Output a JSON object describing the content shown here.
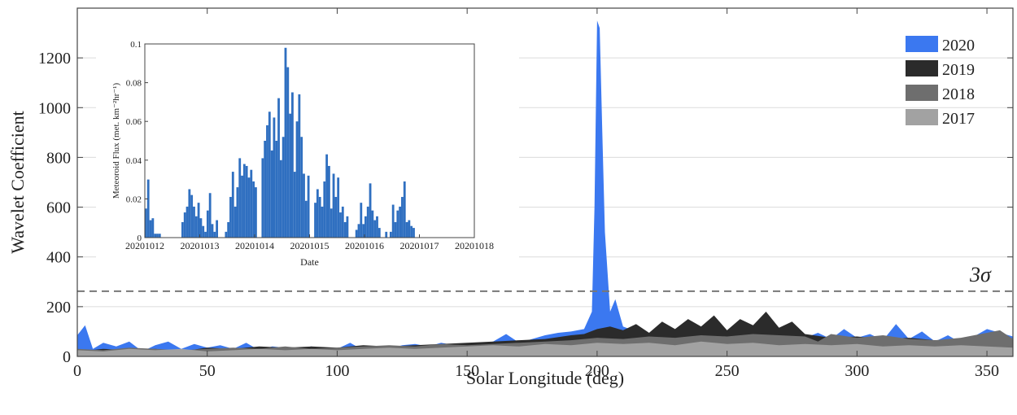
{
  "chart_data": [
    {
      "type": "area",
      "xlabel": "Solar Longitude (deg)",
      "ylabel": "Wavelet Coefficient",
      "xlim": [
        0,
        360
      ],
      "ylim": [
        0,
        1400
      ],
      "xticks": [
        0,
        50,
        100,
        150,
        200,
        250,
        300,
        350
      ],
      "yticks": [
        0,
        200,
        400,
        600,
        800,
        1000,
        1200
      ],
      "grid": "horizontal",
      "legend": "top-right",
      "threshold": {
        "label": "3σ",
        "value": 262
      },
      "series": [
        {
          "name": "2020",
          "color": "#3b78f0",
          "x": [
            0,
            3,
            6,
            10,
            15,
            20,
            25,
            30,
            35,
            40,
            45,
            50,
            55,
            60,
            65,
            70,
            75,
            80,
            85,
            90,
            95,
            100,
            105,
            110,
            115,
            120,
            125,
            130,
            135,
            140,
            145,
            150,
            155,
            160,
            165,
            170,
            175,
            180,
            185,
            190,
            195,
            198,
            199,
            200,
            201,
            202,
            203,
            205,
            207,
            210,
            215,
            220,
            230,
            240,
            250,
            260,
            270,
            280,
            285,
            290,
            295,
            300,
            305,
            310,
            315,
            320,
            325,
            330,
            335,
            340,
            345,
            350,
            355,
            360
          ],
          "values": [
            85,
            125,
            30,
            55,
            40,
            60,
            20,
            45,
            60,
            30,
            50,
            35,
            45,
            30,
            55,
            25,
            40,
            35,
            30,
            40,
            25,
            30,
            55,
            25,
            40,
            30,
            45,
            50,
            40,
            55,
            45,
            40,
            50,
            60,
            90,
            55,
            70,
            85,
            95,
            100,
            110,
            180,
            600,
            1350,
            1320,
            900,
            500,
            180,
            230,
            120,
            100,
            90,
            80,
            85,
            90,
            85,
            80,
            75,
            95,
            70,
            110,
            75,
            90,
            65,
            130,
            70,
            100,
            60,
            85,
            55,
            80,
            110,
            95,
            80
          ]
        },
        {
          "name": "2019",
          "color": "#2b2b2b",
          "x": [
            0,
            10,
            20,
            30,
            40,
            50,
            60,
            70,
            80,
            90,
            100,
            110,
            120,
            130,
            140,
            150,
            160,
            170,
            180,
            190,
            195,
            200,
            205,
            210,
            215,
            220,
            225,
            230,
            235,
            240,
            245,
            250,
            255,
            260,
            265,
            270,
            275,
            280,
            290,
            300,
            310,
            320,
            330,
            340,
            350,
            360
          ],
          "values": [
            20,
            30,
            25,
            30,
            20,
            35,
            30,
            40,
            35,
            40,
            35,
            45,
            40,
            45,
            50,
            55,
            60,
            65,
            70,
            85,
            90,
            110,
            120,
            105,
            130,
            95,
            140,
            110,
            150,
            120,
            165,
            105,
            150,
            125,
            180,
            115,
            140,
            90,
            75,
            80,
            70,
            75,
            65,
            70,
            60,
            55
          ]
        },
        {
          "name": "2018",
          "color": "#6e6e6e",
          "x": [
            0,
            10,
            20,
            30,
            40,
            50,
            60,
            70,
            80,
            90,
            100,
            110,
            120,
            130,
            140,
            150,
            160,
            170,
            180,
            190,
            200,
            210,
            220,
            230,
            240,
            250,
            260,
            270,
            280,
            285,
            290,
            300,
            310,
            320,
            330,
            340,
            350,
            355,
            360
          ],
          "values": [
            30,
            25,
            35,
            30,
            25,
            30,
            35,
            30,
            40,
            30,
            35,
            40,
            45,
            40,
            50,
            45,
            50,
            55,
            60,
            65,
            75,
            70,
            80,
            75,
            85,
            80,
            90,
            85,
            80,
            60,
            90,
            75,
            85,
            70,
            65,
            75,
            95,
            105,
            70
          ]
        },
        {
          "name": "2017",
          "color": "#a2a2a2",
          "x": [
            0,
            10,
            20,
            30,
            40,
            50,
            60,
            70,
            80,
            90,
            100,
            110,
            120,
            130,
            140,
            150,
            160,
            170,
            180,
            190,
            200,
            210,
            220,
            230,
            240,
            250,
            260,
            270,
            280,
            290,
            300,
            310,
            320,
            330,
            340,
            350,
            360
          ],
          "values": [
            25,
            20,
            30,
            25,
            30,
            20,
            25,
            30,
            25,
            30,
            25,
            30,
            35,
            30,
            35,
            40,
            45,
            40,
            50,
            45,
            55,
            50,
            55,
            45,
            60,
            50,
            55,
            45,
            50,
            45,
            50,
            40,
            45,
            40,
            45,
            40,
            35
          ]
        }
      ]
    },
    {
      "type": "bar",
      "xlabel": "Date",
      "ylabel": "Meteoroid Flux (met. km⁻²hr⁻¹)",
      "xlim": [
        0,
        6
      ],
      "ylim": [
        0,
        0.1
      ],
      "xtick_labels": [
        "20201012",
        "20201013",
        "20201014",
        "20201015",
        "20201016",
        "20201017",
        "20201018"
      ],
      "yticks": [
        0,
        0.02,
        0.04,
        0.06,
        0.08,
        0.1
      ],
      "ytick_labels": [
        "0",
        "0.02",
        "0.04",
        "0.06",
        "0.08",
        "0.1"
      ],
      "color": "#2f6fc0",
      "bin_width_days": 0.04167,
      "values": [
        0.015,
        0.03,
        0.009,
        0.01,
        0.002,
        0.002,
        0.002,
        0,
        0,
        0,
        0,
        0,
        0,
        0,
        0,
        0,
        0.008,
        0.013,
        0.016,
        0.025,
        0.022,
        0.016,
        0.011,
        0.018,
        0.01,
        0.006,
        0.003,
        0.014,
        0.023,
        0.007,
        0.003,
        0.009,
        0,
        0,
        0,
        0.003,
        0.008,
        0.021,
        0.034,
        0.016,
        0.026,
        0.041,
        0.032,
        0.038,
        0.037,
        0.031,
        0.035,
        0.029,
        0.026,
        0,
        0,
        0.041,
        0.05,
        0.058,
        0.065,
        0.045,
        0.062,
        0.05,
        0.072,
        0.04,
        0.052,
        0.098,
        0.088,
        0.064,
        0.075,
        0.034,
        0.06,
        0.074,
        0.052,
        0.033,
        0.019,
        0.032,
        0,
        0,
        0.018,
        0.025,
        0.021,
        0.016,
        0.029,
        0.043,
        0.037,
        0.015,
        0.033,
        0.021,
        0.031,
        0.013,
        0.016,
        0.008,
        0.011,
        0,
        0,
        0,
        0.004,
        0.007,
        0.018,
        0.007,
        0.011,
        0.016,
        0.028,
        0.014,
        0.009,
        0.011,
        0.005,
        0,
        0,
        0.003,
        0,
        0.003,
        0.017,
        0.008,
        0.014,
        0.016,
        0.021,
        0.029,
        0.008,
        0.009,
        0.006,
        0.005
      ]
    }
  ]
}
